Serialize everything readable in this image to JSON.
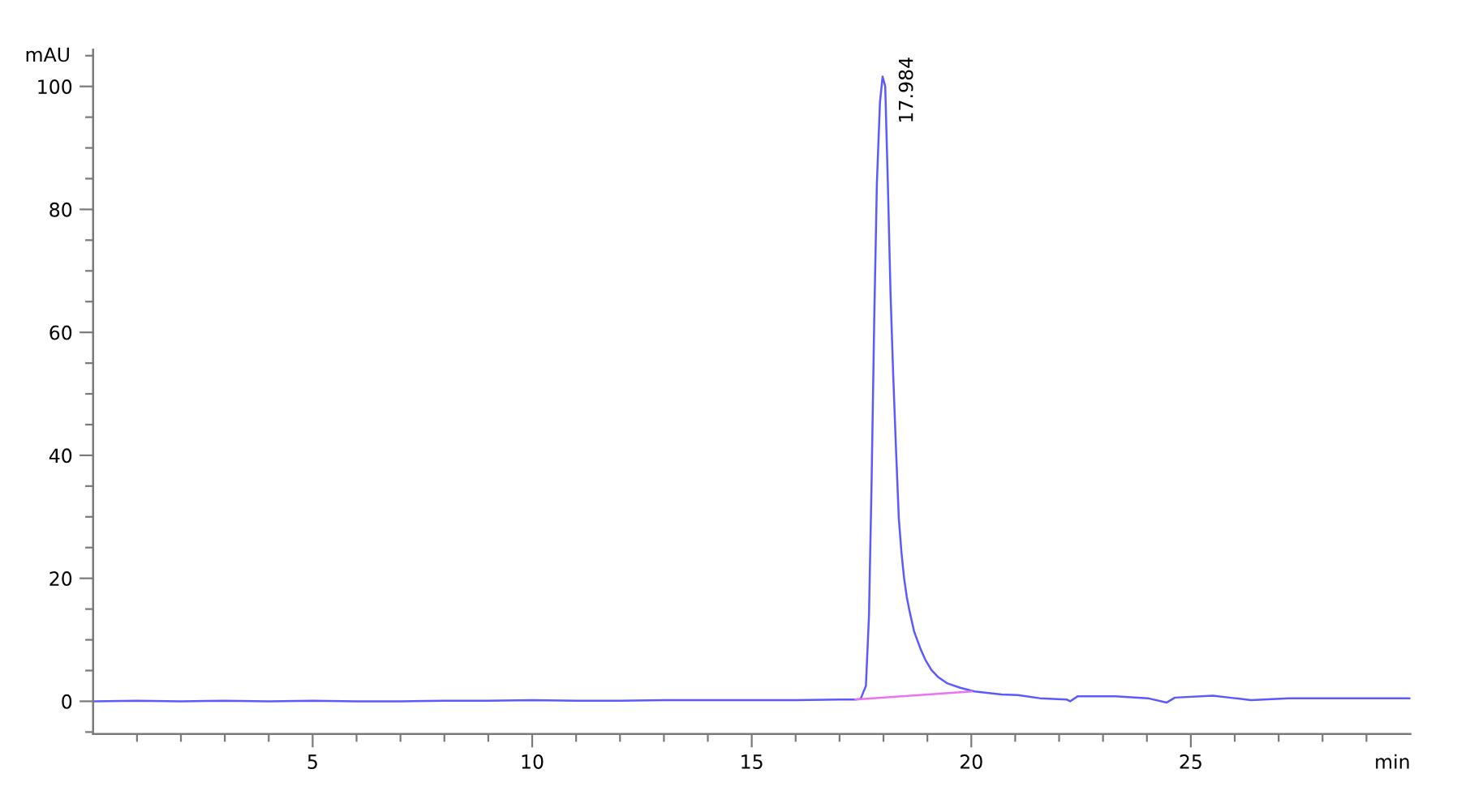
{
  "chart_data": {
    "type": "line",
    "xlabel": "min",
    "ylabel": "mAU",
    "xlim": [
      0,
      30
    ],
    "ylim": [
      -5.3,
      106
    ],
    "xticks": [
      {
        "value": 1,
        "label": null
      },
      {
        "value": 2,
        "label": null
      },
      {
        "value": 3,
        "label": null
      },
      {
        "value": 4,
        "label": null
      },
      5,
      {
        "value": 6,
        "label": null
      },
      {
        "value": 7,
        "label": null
      },
      {
        "value": 8,
        "label": null
      },
      {
        "value": 9,
        "label": null
      },
      10,
      {
        "value": 11,
        "label": null
      },
      {
        "value": 12,
        "label": null
      },
      {
        "value": 13,
        "label": null
      },
      {
        "value": 14,
        "label": null
      },
      15,
      {
        "value": 16,
        "label": null
      },
      {
        "value": 17,
        "label": null
      },
      {
        "value": 18,
        "label": null
      },
      {
        "value": 19,
        "label": null
      },
      20,
      {
        "value": 21,
        "label": null
      },
      {
        "value": 22,
        "label": null
      },
      {
        "value": 23,
        "label": null
      },
      {
        "value": 24,
        "label": null
      },
      25,
      {
        "value": 26,
        "label": null
      },
      {
        "value": 27,
        "label": null
      },
      {
        "value": 28,
        "label": null
      },
      {
        "value": 29,
        "label": null
      }
    ],
    "yticks": [
      {
        "value": -5,
        "label": null
      },
      0,
      {
        "value": 5,
        "label": null
      },
      {
        "value": 10,
        "label": null
      },
      {
        "value": 15,
        "label": null
      },
      20,
      {
        "value": 25,
        "label": null
      },
      {
        "value": 30,
        "label": null
      },
      {
        "value": 35,
        "label": null
      },
      40,
      {
        "value": 45,
        "label": null
      },
      {
        "value": 50,
        "label": null
      },
      {
        "value": 55,
        "label": null
      },
      60,
      {
        "value": 65,
        "label": null
      },
      {
        "value": 70,
        "label": null
      },
      {
        "value": 75,
        "label": null
      },
      80,
      {
        "value": 85,
        "label": null
      },
      {
        "value": 90,
        "label": null
      },
      {
        "value": 95,
        "label": null
      },
      100,
      {
        "value": 105,
        "label": null
      }
    ],
    "grid": false,
    "series": [
      {
        "color": "#5a5aff",
        "x": [
          0,
          1,
          2,
          3,
          4,
          5,
          6,
          7,
          8,
          9,
          10,
          11,
          12,
          13,
          14,
          15,
          16,
          17,
          17.36,
          17.48,
          17.6,
          17.67,
          17.73,
          17.79,
          17.85,
          17.92,
          17.98,
          18.04,
          18.1,
          18.16,
          18.22,
          18.29,
          18.35,
          18.41,
          18.47,
          18.53,
          18.59,
          18.7,
          18.84,
          18.95,
          19.09,
          19.25,
          19.46,
          19.75,
          20.07,
          20.69,
          21.06,
          21.56,
          22.17,
          22.25,
          22.42,
          23.28,
          24.02,
          24.45,
          24.64,
          25.5,
          26.0,
          26.37,
          27.23,
          28.47,
          30
        ],
        "values": [
          0.0,
          0.1,
          0.0,
          0.1,
          0.0,
          0.1,
          0.0,
          0.0,
          0.1,
          0.1,
          0.2,
          0.1,
          0.1,
          0.2,
          0.2,
          0.2,
          0.2,
          0.3,
          0.3,
          0.4,
          2.5,
          13.9,
          35.8,
          62.2,
          84.2,
          97.4,
          101.6,
          100.0,
          84.2,
          66.6,
          53.4,
          40.2,
          29.7,
          24.2,
          20.0,
          17.0,
          14.8,
          11.3,
          8.6,
          6.8,
          5.1,
          3.9,
          2.9,
          2.2,
          1.6,
          1.1,
          1.0,
          0.5,
          0.3,
          0.0,
          0.8,
          0.8,
          0.5,
          -0.2,
          0.6,
          0.9,
          0.5,
          0.2,
          0.5,
          0.5,
          0.5
        ]
      },
      {
        "color": "#f070f0",
        "x": [
          17.36,
          20.01
        ],
        "values": [
          0.3,
          1.6
        ]
      }
    ],
    "annotations": [
      {
        "text": "17.984",
        "x": 17.984,
        "y": 101.6
      }
    ]
  }
}
